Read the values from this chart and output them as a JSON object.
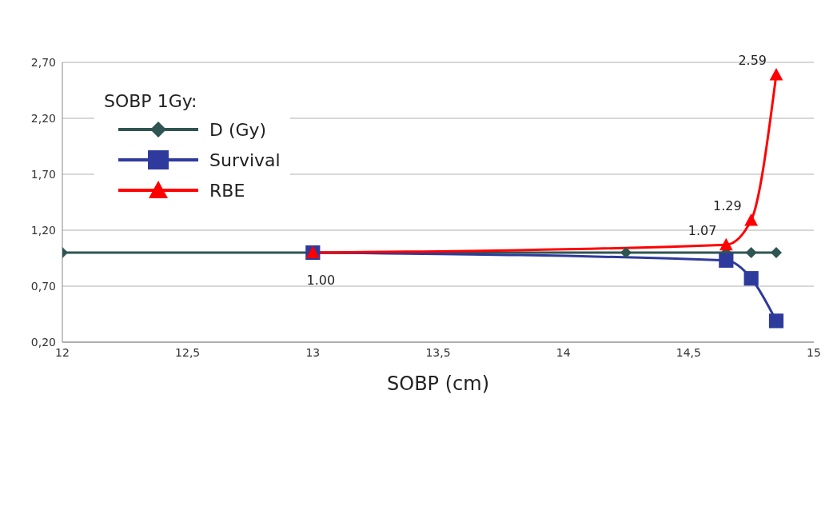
{
  "chart_data": {
    "type": "line",
    "xlabel": "SOBP (cm)",
    "legend_title": "SOBP 1Gy:",
    "legend": "top left",
    "grid": "y",
    "xlim": [
      12,
      15
    ],
    "xticks": [
      12,
      {
        "value": 12.5,
        "label": "12,5"
      },
      13,
      {
        "value": 13.5,
        "label": "13,5"
      },
      14,
      {
        "value": 14.5,
        "label": "14,5"
      },
      15
    ],
    "ylim": [
      0.2,
      2.7
    ],
    "yticks": [
      {
        "value": 0.2,
        "label": "0,20"
      },
      {
        "value": 0.7,
        "label": "0,70"
      },
      {
        "value": 1.2,
        "label": "1,20"
      },
      {
        "value": 1.7,
        "label": "1,70"
      },
      {
        "value": 2.2,
        "label": "2,20"
      },
      {
        "value": 2.7,
        "label": "2,70"
      }
    ],
    "series": [
      {
        "name": "D (Gy)",
        "color": "#2f5552",
        "marker": "diamond",
        "x": [
          12,
          13,
          14.25,
          14.65,
          14.75,
          14.85
        ],
        "values": [
          1.0,
          1.0,
          1.0,
          1.0,
          1.0,
          1.0
        ]
      },
      {
        "name": "Survival",
        "color": "#2e3a9c",
        "marker": "square",
        "x": [
          13,
          14.65,
          14.75,
          14.85
        ],
        "values": [
          1.0,
          0.93,
          0.77,
          0.39
        ]
      },
      {
        "name": "RBE",
        "color": "#ff0000",
        "marker": "triangle",
        "x": [
          13,
          14.65,
          14.75,
          14.85
        ],
        "values": [
          1.0,
          1.07,
          1.29,
          2.59
        ],
        "value_labels": [
          "1.00",
          "1.07",
          "1.29",
          "2.59"
        ]
      }
    ]
  }
}
